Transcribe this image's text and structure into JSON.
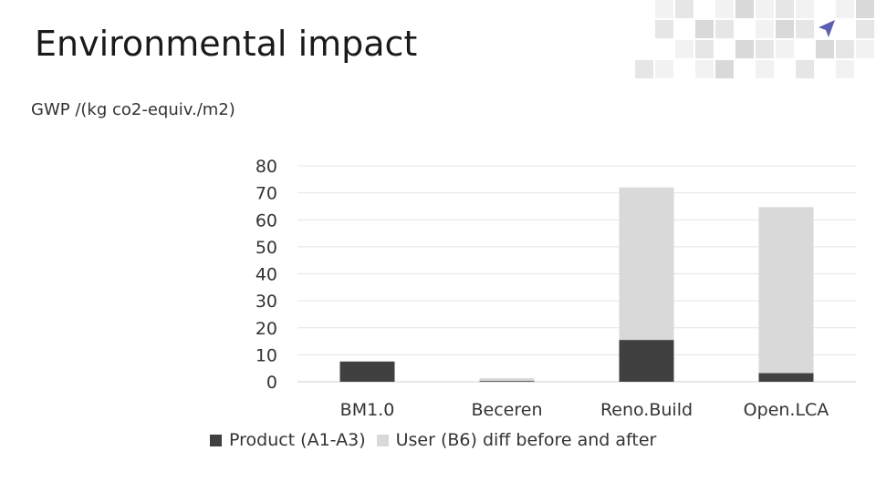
{
  "slide": {
    "title": "Environmental impact"
  },
  "chart_data": {
    "type": "bar",
    "stacked": true,
    "title": "GWP /(kg co2-equiv./m2)",
    "xlabel": "",
    "ylabel": "",
    "categories": [
      "BM1.0",
      "Beceren",
      "Reno.Build",
      "Open.LCA"
    ],
    "series": [
      {
        "name": "Product (A1-A3)",
        "color": "#404040",
        "values": [
          7.5,
          0.3,
          15.5,
          3.2
        ]
      },
      {
        "name": "User (B6) diff before and after",
        "color": "#d9d9d9",
        "values": [
          0,
          1.0,
          56.5,
          61.5
        ]
      }
    ],
    "ylim": [
      0,
      80
    ],
    "yticks": [
      "80",
      "70",
      "60",
      "50",
      "40",
      "30",
      "20",
      "10",
      "0"
    ],
    "grid": true,
    "legend": "bottom"
  },
  "decoration": {
    "logo": "arrow-cursor-icon",
    "tile_colors": [
      "#f2f2f2",
      "#e6e6e6",
      "#d9d9d9"
    ],
    "logo_color": "#5b5fb0"
  }
}
